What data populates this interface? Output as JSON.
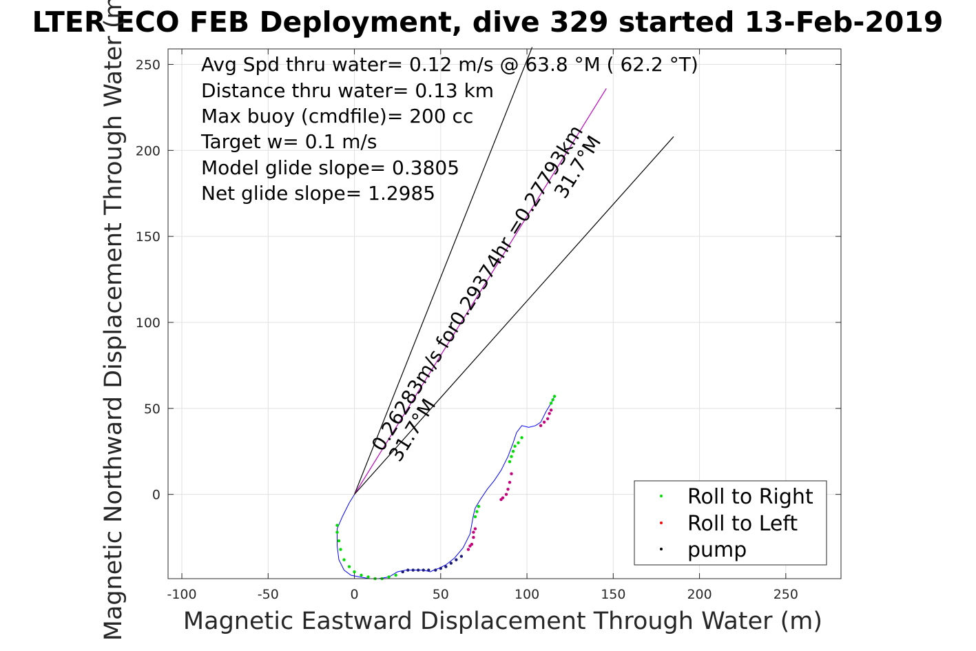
{
  "chart_data": {
    "type": "line",
    "title": "LTER ECO FEB Deployment, dive 329 started 13-Feb-2019",
    "xlabel": "Magnetic Eastward Displacement Through Water (m)",
    "ylabel": "Magnetic Northward Displacement Through Water (m)",
    "xlim": [
      -108,
      282
    ],
    "ylim": [
      -49,
      259
    ],
    "xticks": [
      -100,
      -50,
      0,
      50,
      100,
      150,
      200,
      250
    ],
    "yticks": [
      0,
      50,
      100,
      150,
      200,
      250
    ],
    "grid": true,
    "legend_position": "bottom-right",
    "stats": [
      "Avg Spd thru water=  0.12 m/s @  63.8 °M ( 62.2 °T)",
      "Distance thru water=  0.13 km",
      "Max buoy (cmdfile)= 200 cc",
      "Target w= 0.1 m/s",
      "Model glide slope= 0.3805",
      "Net glide slope= 1.2985"
    ],
    "annotations": {
      "current_speed": "0.26283m/s for0.29374hr =0.27793km",
      "heading_near": "31.7°M",
      "heading_far": "31.7°M"
    },
    "reference_lines": [
      {
        "name": "cone-left",
        "x": [
          0,
          103
        ],
        "y": [
          0,
          260
        ]
      },
      {
        "name": "current-vector",
        "x": [
          0,
          146
        ],
        "y": [
          0,
          236
        ]
      },
      {
        "name": "cone-right",
        "x": [
          0,
          185
        ],
        "y": [
          0,
          208
        ]
      }
    ],
    "track": {
      "x": [
        0,
        -3,
        -7,
        -10,
        -10,
        -9,
        -6,
        -2,
        3,
        9,
        14,
        20,
        25,
        30,
        35,
        40,
        44,
        46,
        49,
        53,
        58,
        63,
        67,
        69,
        70,
        73,
        77,
        81,
        85,
        89,
        92,
        94,
        97,
        101,
        105,
        108,
        111,
        114,
        116
      ],
      "y": [
        0,
        -5,
        -13,
        -20,
        -30,
        -38,
        -44,
        -47,
        -48,
        -49,
        -49,
        -48,
        -45,
        -44,
        -44,
        -44,
        -45,
        -44,
        -43,
        -41,
        -37,
        -31,
        -23,
        -12,
        -8,
        -3,
        3,
        8,
        14,
        22,
        30,
        36,
        40,
        39,
        40,
        42,
        48,
        53,
        57
      ]
    },
    "series": [
      {
        "name": "Roll to Right",
        "color": "#00dd00",
        "x": [
          -10,
          -10,
          -9,
          -8,
          -6,
          -3,
          0,
          4,
          8,
          12,
          16,
          20,
          24,
          70,
          71,
          72,
          90,
          91,
          92,
          93,
          95,
          97,
          114,
          115,
          116
        ],
        "y": [
          -18,
          -22,
          -27,
          -32,
          -38,
          -42,
          -45,
          -47,
          -48,
          -49,
          -49,
          -48,
          -47,
          -13,
          -10,
          -7,
          19,
          22,
          25,
          28,
          30,
          33,
          53,
          55,
          57
        ]
      },
      {
        "name": "Roll to Left",
        "color": "#ff0000",
        "x": [
          66,
          67,
          68,
          69,
          69,
          70,
          85,
          86,
          88,
          89,
          90,
          91,
          108,
          110,
          112,
          113,
          114
        ],
        "y": [
          -32,
          -30,
          -29,
          -25,
          -22,
          -20,
          -3,
          -2,
          0,
          3,
          7,
          12,
          40,
          42,
          44,
          47,
          49
        ],
        "display_color": "#c4007a"
      },
      {
        "name": "pump",
        "color": "#000000",
        "x": [
          28,
          31,
          34,
          37,
          40,
          43,
          47,
          50,
          53,
          56,
          59,
          62
        ],
        "y": [
          -45,
          -44,
          -44,
          -44,
          -44,
          -44,
          -44,
          -43,
          -42,
          -40,
          -38,
          -36
        ],
        "display_color": "#1a1a7a"
      }
    ],
    "colors": {
      "track": "#0000ff",
      "current_vector": "#c000c0",
      "cone": "#000000",
      "grid": "#e0e0e0"
    }
  }
}
